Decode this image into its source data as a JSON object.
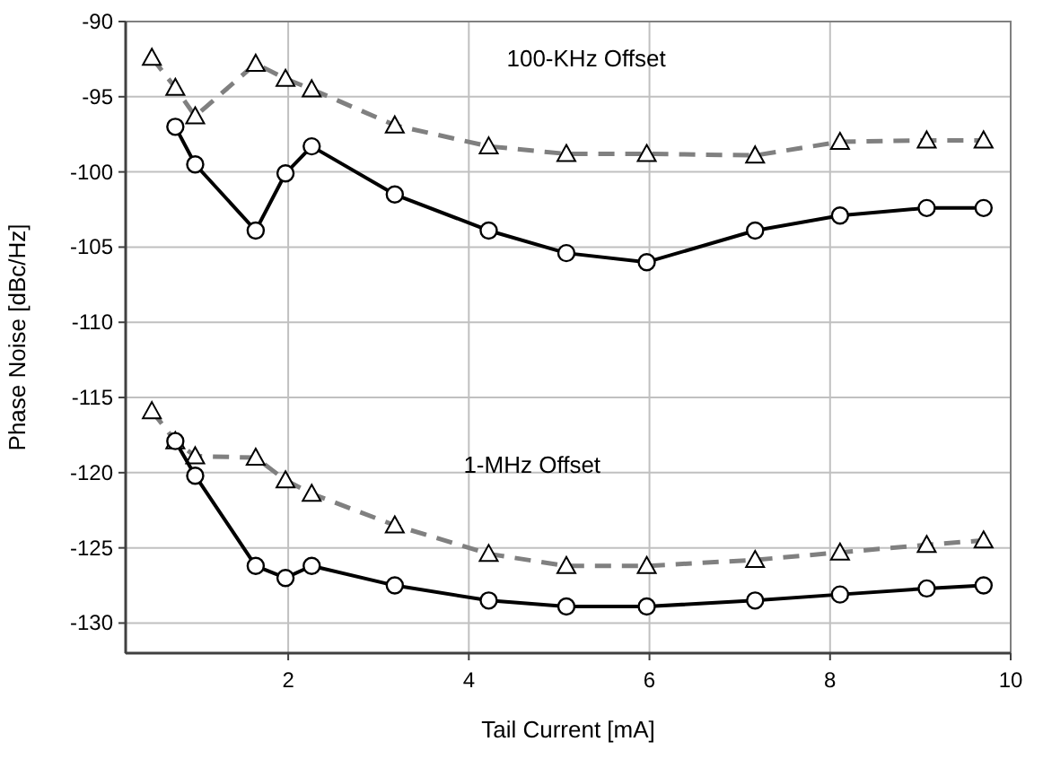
{
  "chart_data": {
    "type": "line",
    "xlabel": "Tail Current [mA]",
    "ylabel": "Phase Noise [dBc/Hz]",
    "xlim": [
      0.2,
      10
    ],
    "xticks": [
      2,
      4,
      6,
      8,
      10
    ],
    "ylim": [
      -132,
      -90
    ],
    "yticks": [
      -130,
      -125,
      -120,
      -115,
      -110,
      -105,
      -100,
      -95,
      -90
    ],
    "grid": true,
    "annotations": [
      "100-KHz Offset",
      "1-MHz Offset"
    ],
    "series": [
      {
        "color": "#808080",
        "marker": "triangle",
        "line_style": "dashed",
        "x": [
          0.49,
          0.75,
          0.97,
          1.64,
          1.97,
          2.26,
          3.18,
          4.22,
          5.08,
          5.97,
          7.17,
          8.11,
          9.07,
          9.7
        ],
        "values": [
          -92.4,
          -94.4,
          -96.3,
          -92.8,
          -93.8,
          -94.5,
          -96.9,
          -98.3,
          -98.8,
          -98.8,
          -98.9,
          -98,
          -97.9,
          -97.9
        ]
      },
      {
        "color": "#000000",
        "marker": "circle",
        "line_style": "solid",
        "x": [
          0.75,
          0.97,
          1.64,
          1.97,
          2.26,
          3.18,
          4.22,
          5.08,
          5.97,
          7.17,
          8.11,
          9.07,
          9.7
        ],
        "values": [
          -97,
          -99.5,
          -103.9,
          -100.1,
          -98.3,
          -101.5,
          -103.9,
          -105.4,
          -106,
          -103.9,
          -102.9,
          -102.4,
          -102.4
        ]
      },
      {
        "color": "#808080",
        "marker": "triangle",
        "line_style": "dashed",
        "x": [
          0.49,
          0.75,
          0.97,
          1.64,
          1.97,
          2.26,
          3.18,
          4.22,
          5.08,
          5.97,
          7.17,
          8.11,
          9.07,
          9.7
        ],
        "values": [
          -115.9,
          -117.9,
          -118.9,
          -119,
          -120.5,
          -121.4,
          -123.5,
          -125.4,
          -126.2,
          -126.2,
          -125.8,
          -125.3,
          -124.8,
          -124.5
        ]
      },
      {
        "color": "#000000",
        "marker": "circle",
        "line_style": "solid",
        "x": [
          0.75,
          0.97,
          1.64,
          1.97,
          2.26,
          3.18,
          4.22,
          5.08,
          5.97,
          7.17,
          8.11,
          9.07,
          9.7
        ],
        "values": [
          -117.9,
          -120.2,
          -126.2,
          -127,
          -126.2,
          -127.5,
          -128.5,
          -128.9,
          -128.9,
          -128.5,
          -128.1,
          -127.7,
          -127.5
        ]
      }
    ]
  }
}
